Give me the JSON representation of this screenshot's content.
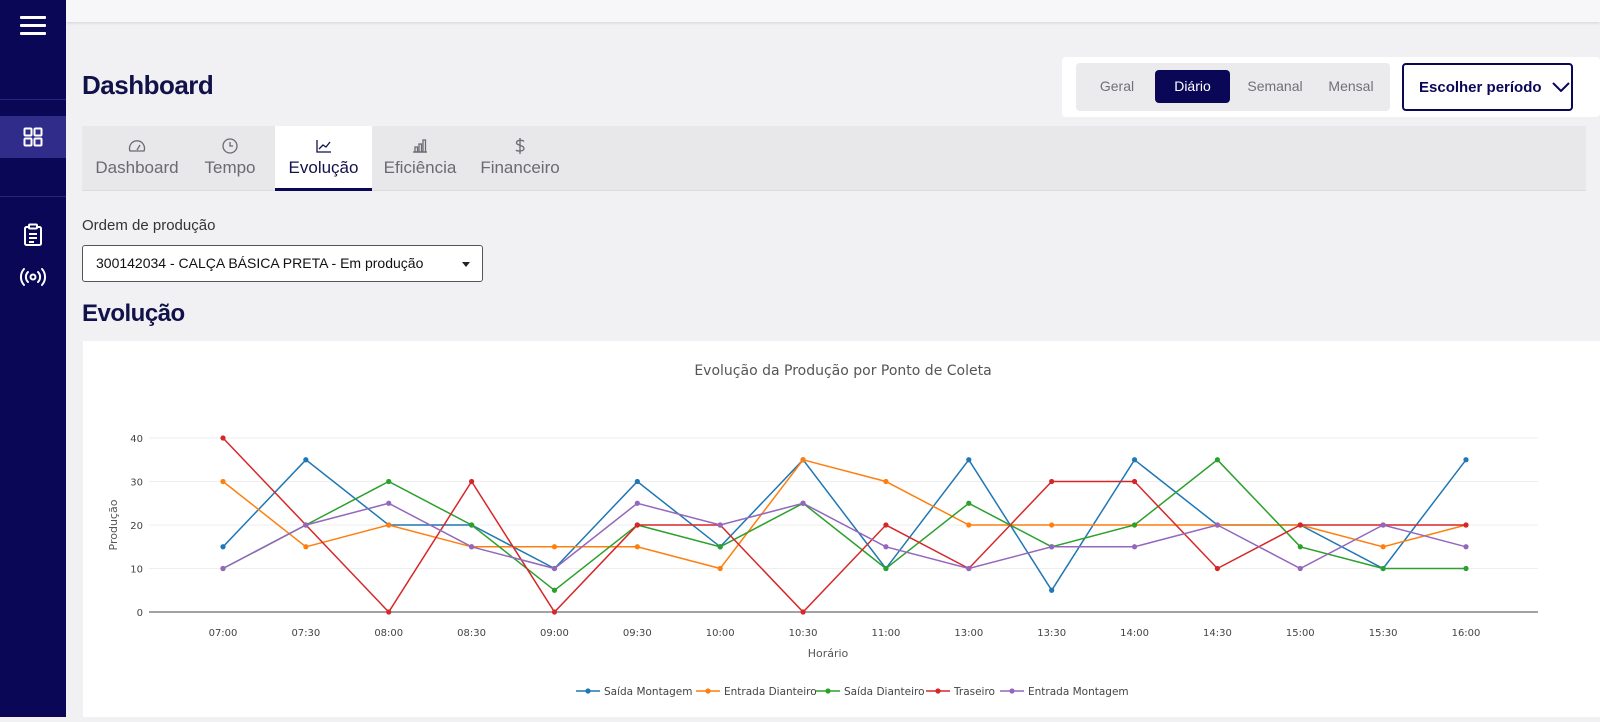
{
  "sidebar": {
    "menu_icon": "hamburger-icon",
    "items": [
      {
        "name": "dashboard",
        "icon": "grid-icon",
        "active": true
      },
      {
        "name": "orders",
        "icon": "clipboard-icon",
        "active": false
      },
      {
        "name": "collection",
        "icon": "broadcast-icon",
        "active": false
      }
    ]
  },
  "header": {
    "title": "Dashboard"
  },
  "period": {
    "options": [
      "Geral",
      "Diário",
      "Semanal",
      "Mensal"
    ],
    "selected": "Diário",
    "choose_label": "Escolher período"
  },
  "tabs": [
    {
      "label": "Dashboard",
      "icon": "gauge-icon"
    },
    {
      "label": "Tempo",
      "icon": "clock-icon"
    },
    {
      "label": "Evolução",
      "icon": "line-chart-icon",
      "active": true
    },
    {
      "label": "Eficiência",
      "icon": "bar-chart-icon"
    },
    {
      "label": "Financeiro",
      "icon": "dollar-icon"
    }
  ],
  "order": {
    "label": "Ordem de produção",
    "value": "300142034 - CALÇA BÁSICA PRETA - Em produção"
  },
  "section": {
    "title": "Evolução"
  },
  "colors": {
    "brand": "#0b0757",
    "accent": "#2f2c8a"
  },
  "chart_data": {
    "type": "line",
    "title": "Evolução da Produção por Ponto de Coleta",
    "xlabel": "Horário",
    "ylabel": "Produção",
    "ylim": [
      0,
      40
    ],
    "yticks": [
      0,
      10,
      20,
      30,
      40
    ],
    "grid": true,
    "legend": "bottom",
    "categories": [
      "07:00",
      "07:30",
      "08:00",
      "08:30",
      "09:00",
      "09:30",
      "10:00",
      "10:30",
      "11:00",
      "13:00",
      "13:30",
      "14:00",
      "14:30",
      "15:00",
      "15:30",
      "16:00"
    ],
    "series": [
      {
        "name": "Saída Montagem",
        "color": "#1f77b4",
        "values": [
          15,
          35,
          20,
          20,
          10,
          30,
          15,
          35,
          10,
          35,
          5,
          35,
          20,
          20,
          10,
          35
        ]
      },
      {
        "name": "Entrada Dianteiro",
        "color": "#ff7f0e",
        "values": [
          30,
          15,
          20,
          15,
          15,
          15,
          10,
          35,
          30,
          20,
          20,
          20,
          20,
          20,
          15,
          20
        ]
      },
      {
        "name": "Saída Dianteiro",
        "color": "#2ca02c",
        "values": [
          10,
          20,
          30,
          20,
          5,
          20,
          15,
          25,
          10,
          25,
          15,
          20,
          35,
          15,
          10,
          10
        ]
      },
      {
        "name": "Traseiro",
        "color": "#d62728",
        "values": [
          40,
          20,
          0,
          30,
          0,
          20,
          20,
          0,
          20,
          10,
          30,
          30,
          10,
          20,
          20,
          20
        ]
      },
      {
        "name": "Entrada Montagem",
        "color": "#9467bd",
        "values": [
          10,
          20,
          25,
          15,
          10,
          25,
          20,
          25,
          15,
          10,
          15,
          15,
          20,
          10,
          20,
          15
        ]
      }
    ]
  }
}
